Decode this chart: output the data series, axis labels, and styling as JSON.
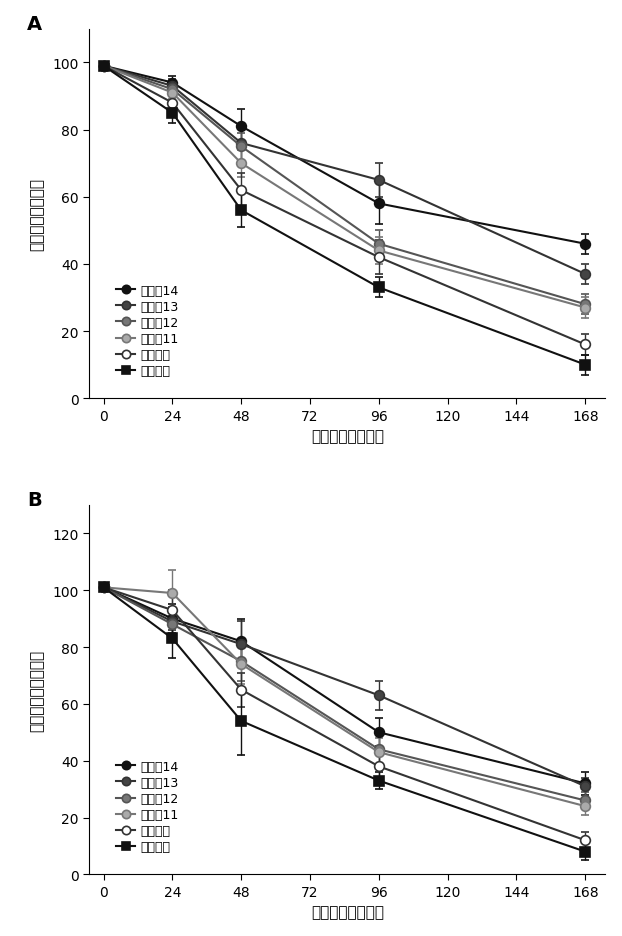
{
  "panel_A": {
    "title": "A",
    "ylabel": "細胞生存率（％）",
    "xlabel": "保存期間（時間）",
    "ylim": [
      0,
      110
    ],
    "yticks": [
      0,
      20,
      40,
      60,
      80,
      100
    ],
    "xticks": [
      0,
      24,
      48,
      72,
      96,
      120,
      144,
      168
    ],
    "series": [
      {
        "label": "実施侁14",
        "x": [
          0,
          24,
          48,
          96,
          168
        ],
        "y": [
          99,
          94,
          81,
          58,
          46
        ],
        "yerr": [
          1,
          2,
          5,
          6,
          3
        ],
        "color": "#111111",
        "marker": "o",
        "markerfacecolor": "#111111"
      },
      {
        "label": "実施侁13",
        "x": [
          0,
          24,
          48,
          96,
          168
        ],
        "y": [
          99,
          93,
          76,
          65,
          37
        ],
        "yerr": [
          1,
          2,
          5,
          5,
          3
        ],
        "color": "#333333",
        "marker": "o",
        "markerfacecolor": "#444444"
      },
      {
        "label": "実施侁12",
        "x": [
          0,
          24,
          48,
          96,
          168
        ],
        "y": [
          99,
          92,
          75,
          46,
          28
        ],
        "yerr": [
          1,
          2,
          4,
          4,
          3
        ],
        "color": "#555555",
        "marker": "o",
        "markerfacecolor": "#777777"
      },
      {
        "label": "実施侁11",
        "x": [
          0,
          24,
          48,
          96,
          168
        ],
        "y": [
          99,
          91,
          70,
          44,
          27
        ],
        "yerr": [
          1,
          2,
          4,
          4,
          3
        ],
        "color": "#777777",
        "marker": "o",
        "markerfacecolor": "#aaaaaa"
      },
      {
        "label": "比較例７",
        "x": [
          0,
          24,
          48,
          96,
          168
        ],
        "y": [
          99,
          88,
          62,
          42,
          16
        ],
        "yerr": [
          1,
          3,
          5,
          5,
          3
        ],
        "color": "#333333",
        "marker": "o",
        "markerfacecolor": "#ffffff"
      },
      {
        "label": "比較例６",
        "x": [
          0,
          24,
          48,
          96,
          168
        ],
        "y": [
          99,
          85,
          56,
          33,
          10
        ],
        "yerr": [
          1,
          3,
          5,
          3,
          3
        ],
        "color": "#111111",
        "marker": "s",
        "markerfacecolor": "#111111"
      }
    ]
  },
  "panel_B": {
    "title": "B",
    "ylabel": "生細胞回収率（％）",
    "xlabel": "保存期間（時間）",
    "ylim": [
      0,
      130
    ],
    "yticks": [
      0,
      20,
      40,
      60,
      80,
      100,
      120
    ],
    "xticks": [
      0,
      24,
      48,
      72,
      96,
      120,
      144,
      168
    ],
    "series": [
      {
        "label": "実施侁14",
        "x": [
          0,
          24,
          48,
          96,
          168
        ],
        "y": [
          101,
          90,
          82,
          50,
          32
        ],
        "yerr": [
          1,
          5,
          8,
          5,
          4
        ],
        "color": "#111111",
        "marker": "o",
        "markerfacecolor": "#111111"
      },
      {
        "label": "実施侁13",
        "x": [
          0,
          24,
          48,
          96,
          168
        ],
        "y": [
          101,
          89,
          81,
          63,
          31
        ],
        "yerr": [
          1,
          5,
          8,
          5,
          3
        ],
        "color": "#333333",
        "marker": "o",
        "markerfacecolor": "#444444"
      },
      {
        "label": "実施侁12",
        "x": [
          0,
          24,
          48,
          96,
          168
        ],
        "y": [
          101,
          88,
          75,
          44,
          26
        ],
        "yerr": [
          1,
          5,
          7,
          5,
          3
        ],
        "color": "#555555",
        "marker": "o",
        "markerfacecolor": "#777777"
      },
      {
        "label": "実施侁11",
        "x": [
          0,
          24,
          48,
          96,
          168
        ],
        "y": [
          101,
          99,
          74,
          43,
          24
        ],
        "yerr": [
          1,
          8,
          7,
          5,
          3
        ],
        "color": "#777777",
        "marker": "o",
        "markerfacecolor": "#aaaaaa"
      },
      {
        "label": "比較例７",
        "x": [
          0,
          24,
          48,
          96,
          168
        ],
        "y": [
          101,
          93,
          65,
          38,
          12
        ],
        "yerr": [
          1,
          7,
          6,
          5,
          3
        ],
        "color": "#333333",
        "marker": "o",
        "markerfacecolor": "#ffffff"
      },
      {
        "label": "比較例６",
        "x": [
          0,
          24,
          48,
          96,
          168
        ],
        "y": [
          101,
          83,
          54,
          33,
          8
        ],
        "yerr": [
          1,
          7,
          12,
          3,
          3
        ],
        "color": "#111111",
        "marker": "s",
        "markerfacecolor": "#111111"
      }
    ]
  },
  "figsize": [
    6.22,
    9.37
  ],
  "dpi": 100,
  "background_color": "#ffffff",
  "font_size": 10,
  "marker_size": 7,
  "line_width": 1.5
}
